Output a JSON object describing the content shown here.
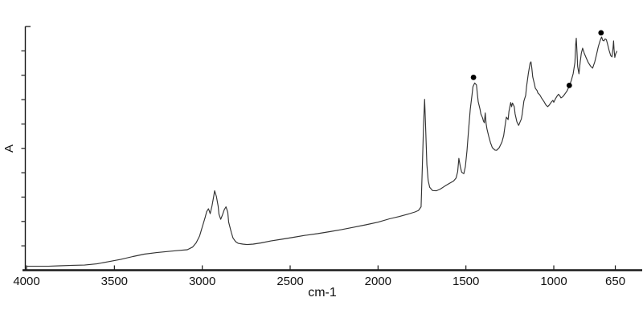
{
  "figure": {
    "background": "#ffffff",
    "curve_color": "#333333",
    "axis_color": "#1a1a1a",
    "tick_label_color": "#111111",
    "marker_color": "#000000"
  },
  "chart_data": {
    "type": "line",
    "title": "",
    "xlabel": "cm-1",
    "ylabel": "A",
    "grid": false,
    "legend": false,
    "x_axis": {
      "min": 650,
      "max": 4000,
      "reversed": true,
      "ticks": [
        {
          "value": 4000,
          "label": "4000"
        },
        {
          "value": 3500,
          "label": "3500"
        },
        {
          "value": 3000,
          "label": "3000"
        },
        {
          "value": 2500,
          "label": "2500"
        },
        {
          "value": 2000,
          "label": "2000"
        },
        {
          "value": 1500,
          "label": "1500"
        },
        {
          "value": 1000,
          "label": "1000"
        },
        {
          "value": 650,
          "label": "650"
        }
      ]
    },
    "y_axis": {
      "min": 0,
      "max": 1,
      "tick_step": 0.1,
      "tick_labels_shown": false
    },
    "series": [
      {
        "name": "absorbance-spectrum",
        "points": [
          [
            4000,
            0.016
          ],
          [
            3945,
            0.016
          ],
          [
            3875,
            0.016
          ],
          [
            3810,
            0.018
          ],
          [
            3740,
            0.02
          ],
          [
            3670,
            0.021
          ],
          [
            3600,
            0.026
          ],
          [
            3535,
            0.035
          ],
          [
            3465,
            0.044
          ],
          [
            3395,
            0.056
          ],
          [
            3330,
            0.066
          ],
          [
            3260,
            0.072
          ],
          [
            3190,
            0.077
          ],
          [
            3135,
            0.081
          ],
          [
            3085,
            0.084
          ],
          [
            3055,
            0.095
          ],
          [
            3035,
            0.112
          ],
          [
            3015,
            0.141
          ],
          [
            3000,
            0.178
          ],
          [
            2985,
            0.214
          ],
          [
            2975,
            0.24
          ],
          [
            2965,
            0.252
          ],
          [
            2960,
            0.243
          ],
          [
            2955,
            0.232
          ],
          [
            2945,
            0.263
          ],
          [
            2935,
            0.303
          ],
          [
            2930,
            0.326
          ],
          [
            2920,
            0.303
          ],
          [
            2910,
            0.263
          ],
          [
            2905,
            0.23
          ],
          [
            2895,
            0.209
          ],
          [
            2885,
            0.227
          ],
          [
            2875,
            0.248
          ],
          [
            2865,
            0.26
          ],
          [
            2855,
            0.237
          ],
          [
            2850,
            0.197
          ],
          [
            2835,
            0.155
          ],
          [
            2825,
            0.132
          ],
          [
            2810,
            0.117
          ],
          [
            2795,
            0.11
          ],
          [
            2770,
            0.107
          ],
          [
            2745,
            0.105
          ],
          [
            2710,
            0.107
          ],
          [
            2665,
            0.112
          ],
          [
            2610,
            0.12
          ],
          [
            2550,
            0.127
          ],
          [
            2480,
            0.135
          ],
          [
            2415,
            0.143
          ],
          [
            2345,
            0.15
          ],
          [
            2275,
            0.158
          ],
          [
            2210,
            0.166
          ],
          [
            2140,
            0.176
          ],
          [
            2070,
            0.186
          ],
          [
            2000,
            0.197
          ],
          [
            1935,
            0.211
          ],
          [
            1880,
            0.22
          ],
          [
            1830,
            0.23
          ],
          [
            1790,
            0.239
          ],
          [
            1770,
            0.245
          ],
          [
            1755,
            0.26
          ],
          [
            1748,
            0.418
          ],
          [
            1741,
            0.599
          ],
          [
            1735,
            0.701
          ],
          [
            1729,
            0.582
          ],
          [
            1722,
            0.434
          ],
          [
            1715,
            0.368
          ],
          [
            1706,
            0.34
          ],
          [
            1690,
            0.327
          ],
          [
            1668,
            0.326
          ],
          [
            1645,
            0.333
          ],
          [
            1620,
            0.345
          ],
          [
            1595,
            0.356
          ],
          [
            1570,
            0.366
          ],
          [
            1556,
            0.378
          ],
          [
            1547,
            0.404
          ],
          [
            1540,
            0.459
          ],
          [
            1532,
            0.425
          ],
          [
            1524,
            0.402
          ],
          [
            1512,
            0.396
          ],
          [
            1503,
            0.425
          ],
          [
            1494,
            0.49
          ],
          [
            1485,
            0.576
          ],
          [
            1475,
            0.661
          ],
          [
            1465,
            0.72
          ],
          [
            1460,
            0.753
          ],
          [
            1450,
            0.768
          ],
          [
            1440,
            0.76
          ],
          [
            1435,
            0.724
          ],
          [
            1430,
            0.691
          ],
          [
            1420,
            0.661
          ],
          [
            1415,
            0.641
          ],
          [
            1405,
            0.625
          ],
          [
            1400,
            0.612
          ],
          [
            1395,
            0.605
          ],
          [
            1390,
            0.645
          ],
          [
            1385,
            0.602
          ],
          [
            1380,
            0.579
          ],
          [
            1370,
            0.549
          ],
          [
            1360,
            0.523
          ],
          [
            1350,
            0.503
          ],
          [
            1335,
            0.493
          ],
          [
            1325,
            0.492
          ],
          [
            1310,
            0.503
          ],
          [
            1295,
            0.526
          ],
          [
            1285,
            0.553
          ],
          [
            1275,
            0.605
          ],
          [
            1270,
            0.628
          ],
          [
            1260,
            0.618
          ],
          [
            1255,
            0.651
          ],
          [
            1245,
            0.688
          ],
          [
            1240,
            0.671
          ],
          [
            1235,
            0.686
          ],
          [
            1225,
            0.671
          ],
          [
            1220,
            0.641
          ],
          [
            1210,
            0.609
          ],
          [
            1200,
            0.594
          ],
          [
            1190,
            0.612
          ],
          [
            1185,
            0.62
          ],
          [
            1180,
            0.638
          ],
          [
            1170,
            0.694
          ],
          [
            1160,
            0.717
          ],
          [
            1155,
            0.753
          ],
          [
            1145,
            0.806
          ],
          [
            1135,
            0.849
          ],
          [
            1130,
            0.855
          ],
          [
            1125,
            0.829
          ],
          [
            1120,
            0.793
          ],
          [
            1110,
            0.763
          ],
          [
            1105,
            0.747
          ],
          [
            1095,
            0.737
          ],
          [
            1090,
            0.727
          ],
          [
            1080,
            0.72
          ],
          [
            1070,
            0.707
          ],
          [
            1055,
            0.691
          ],
          [
            1045,
            0.678
          ],
          [
            1035,
            0.671
          ],
          [
            1025,
            0.678
          ],
          [
            1015,
            0.689
          ],
          [
            1005,
            0.697
          ],
          [
            1000,
            0.689
          ],
          [
            990,
            0.704
          ],
          [
            980,
            0.716
          ],
          [
            973,
            0.722
          ],
          [
            966,
            0.716
          ],
          [
            959,
            0.707
          ],
          [
            950,
            0.711
          ],
          [
            940,
            0.72
          ],
          [
            930,
            0.73
          ],
          [
            925,
            0.735
          ],
          [
            920,
            0.743
          ],
          [
            910,
            0.758
          ],
          [
            900,
            0.78
          ],
          [
            890,
            0.806
          ],
          [
            880,
            0.852
          ],
          [
            875,
            0.928
          ],
          [
            872,
            0.952
          ],
          [
            868,
            0.895
          ],
          [
            864,
            0.836
          ],
          [
            857,
            0.806
          ],
          [
            850,
            0.852
          ],
          [
            843,
            0.891
          ],
          [
            836,
            0.911
          ],
          [
            827,
            0.891
          ],
          [
            815,
            0.87
          ],
          [
            804,
            0.852
          ],
          [
            790,
            0.837
          ],
          [
            779,
            0.829
          ],
          [
            767,
            0.855
          ],
          [
            756,
            0.888
          ],
          [
            747,
            0.916
          ],
          [
            740,
            0.934
          ],
          [
            734,
            0.947
          ],
          [
            728,
            0.957
          ],
          [
            721,
            0.943
          ],
          [
            715,
            0.941
          ],
          [
            708,
            0.949
          ],
          [
            701,
            0.946
          ],
          [
            694,
            0.928
          ],
          [
            685,
            0.901
          ],
          [
            676,
            0.88
          ],
          [
            669,
            0.875
          ],
          [
            663,
            0.911
          ],
          [
            660,
            0.941
          ],
          [
            657,
            0.905
          ],
          [
            653,
            0.873
          ],
          [
            648,
            0.888
          ],
          [
            641,
            0.898
          ]
        ]
      }
    ],
    "peak_markers": [
      {
        "wavenumber": 1457,
        "absorbance": 0.791
      },
      {
        "wavenumber": 912,
        "absorbance": 0.758
      },
      {
        "wavenumber": 731,
        "absorbance": 0.974
      }
    ]
  }
}
